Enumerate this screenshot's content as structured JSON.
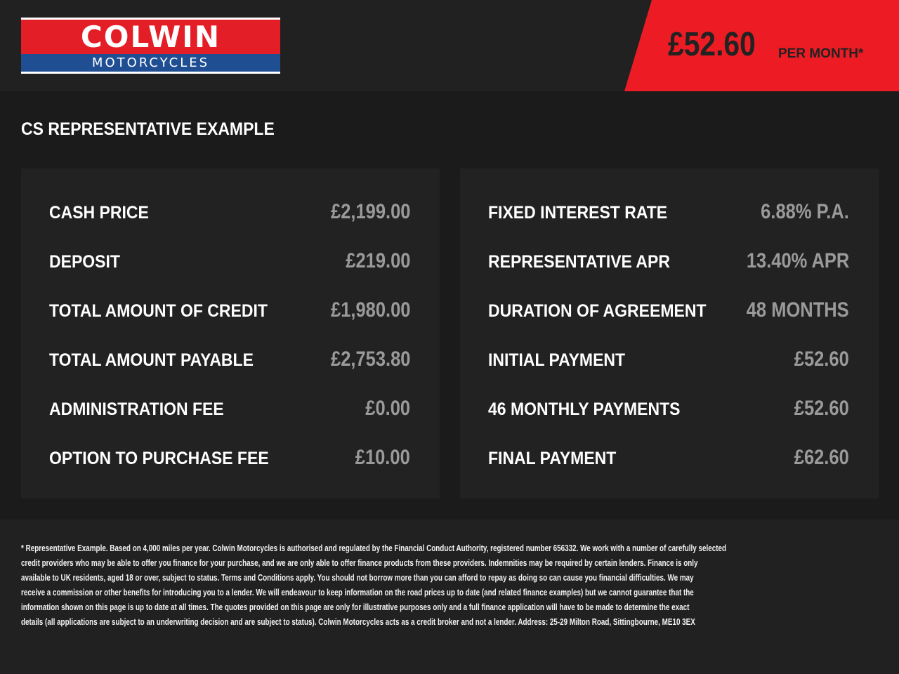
{
  "header": {
    "logo_top": "COLWIN",
    "logo_bottom": "MOTORCYCLES",
    "price": "£52.60",
    "per_month": "PER MONTH*"
  },
  "title": "CS REPRESENTATIVE EXAMPLE",
  "left": [
    {
      "label": "CASH PRICE",
      "value": "£2,199.00"
    },
    {
      "label": "DEPOSIT",
      "value": "£219.00"
    },
    {
      "label": "TOTAL AMOUNT OF CREDIT",
      "value": "£1,980.00"
    },
    {
      "label": "TOTAL AMOUNT PAYABLE",
      "value": "£2,753.80"
    },
    {
      "label": "ADMINISTRATION FEE",
      "value": "£0.00"
    },
    {
      "label": "OPTION TO PURCHASE FEE",
      "value": "£10.00"
    }
  ],
  "right": [
    {
      "label": "FIXED INTEREST RATE",
      "value": "6.88% P.A."
    },
    {
      "label": "REPRESENTATIVE APR",
      "value": "13.40% APR"
    },
    {
      "label": "DURATION OF AGREEMENT",
      "value": "48 MONTHS"
    },
    {
      "label": "INITIAL PAYMENT",
      "value": "£52.60"
    },
    {
      "label": "46 MONTHLY PAYMENTS",
      "value": "£52.60"
    },
    {
      "label": "FINAL PAYMENT",
      "value": "£62.60"
    }
  ],
  "footer": [
    "* Representative Example. Based on 4,000 miles per year. Colwin Motorcycles is authorised and regulated by the Financial Conduct Authority, registered number 656332. We work with a number of carefully selected",
    "credit providers who may be able to offer you finance for your purchase, and we are only able to offer finance products from these providers. Indemnities may be required by certain lenders. Finance is only",
    "available to UK residents, aged 18 or over, subject to status. Terms and Conditions apply. You should not borrow more than you can afford to repay as doing so can cause you financial difficulties. We may",
    "receive a commission or other benefits for introducing you to a lender. We will endeavour to keep information on the road prices up to date (and related finance examples) but we cannot guarantee that the",
    "information shown on this page is up to date at all times. The quotes provided on this page are only for illustrative purposes only and a full finance application will have to be made to determine the exact",
    "details (all applications are subject to an underwriting decision and are subject to status). Colwin Motorcycles acts as a credit broker and not a lender. Address:  25-29 Milton Road, Sittingbourne, ME10 3EX"
  ]
}
